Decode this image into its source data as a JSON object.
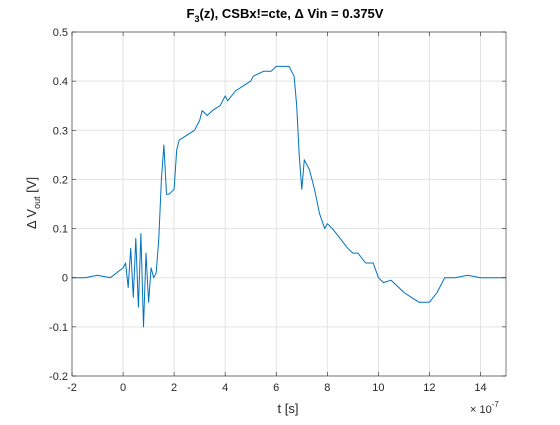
{
  "chart_data": {
    "type": "line",
    "title_parts": {
      "pre": "F",
      "sub": "3",
      "post": "(z), CSBx!=cte, Δ Vin = 0.375V"
    },
    "xlabel": "t [s]",
    "ylabel_parts": {
      "pre": "Δ V",
      "sub": "out",
      "post": " [V]"
    },
    "x_multiplier": {
      "base": "× 10",
      "exponent": "-7"
    },
    "xlim": [
      -2,
      15
    ],
    "ylim": [
      -0.2,
      0.5
    ],
    "x_scale_exponent": -7,
    "xticks": [
      -2,
      0,
      2,
      4,
      6,
      8,
      10,
      12,
      14
    ],
    "xtick_labels": [
      "-2",
      "0",
      "2",
      "4",
      "6",
      "8",
      "10",
      "12",
      "14"
    ],
    "yticks": [
      -0.2,
      -0.1,
      0,
      0.1,
      0.2,
      0.3,
      0.4,
      0.5
    ],
    "ytick_labels": [
      "-0.2",
      "-0.1",
      "0",
      "0.1",
      "0.2",
      "0.3",
      "0.4",
      "0.5"
    ],
    "grid": true,
    "line_color": "#0072BD",
    "series": [
      {
        "x": [
          -2.0,
          -1.5,
          -1.0,
          -0.5,
          0.0,
          0.1,
          0.2,
          0.3,
          0.4,
          0.5,
          0.6,
          0.7,
          0.8,
          0.9,
          1.0,
          1.1,
          1.2,
          1.3,
          1.4,
          1.5,
          1.6,
          1.7,
          1.8,
          2.0,
          2.1,
          2.2,
          2.5,
          2.8,
          3.0,
          3.1,
          3.3,
          3.5,
          3.8,
          4.0,
          4.1,
          4.4,
          4.7,
          5.0,
          5.1,
          5.5,
          5.8,
          6.0,
          6.2,
          6.5,
          6.7,
          6.8,
          6.9,
          7.0,
          7.1,
          7.3,
          7.5,
          7.7,
          7.9,
          8.0,
          8.2,
          8.5,
          8.8,
          9.0,
          9.2,
          9.5,
          9.8,
          10.0,
          10.2,
          10.5,
          10.8,
          11.0,
          11.3,
          11.6,
          12.0,
          12.3,
          12.6,
          13.0,
          13.5,
          14.0,
          14.5,
          15.0
        ],
        "y": [
          0.0,
          0.0,
          0.005,
          0.0,
          0.02,
          0.03,
          -0.02,
          0.06,
          -0.04,
          0.08,
          -0.06,
          0.09,
          -0.1,
          0.05,
          -0.05,
          0.02,
          0.0,
          0.01,
          0.08,
          0.2,
          0.27,
          0.17,
          0.17,
          0.18,
          0.26,
          0.28,
          0.29,
          0.3,
          0.32,
          0.34,
          0.33,
          0.34,
          0.35,
          0.37,
          0.36,
          0.38,
          0.39,
          0.4,
          0.41,
          0.42,
          0.42,
          0.43,
          0.43,
          0.43,
          0.41,
          0.35,
          0.25,
          0.18,
          0.24,
          0.22,
          0.18,
          0.13,
          0.1,
          0.11,
          0.1,
          0.08,
          0.06,
          0.05,
          0.05,
          0.03,
          0.03,
          0.0,
          -0.01,
          -0.005,
          -0.02,
          -0.03,
          -0.04,
          -0.05,
          -0.05,
          -0.03,
          0.0,
          0.0,
          0.005,
          0.0,
          0.0,
          0.0
        ]
      }
    ]
  }
}
